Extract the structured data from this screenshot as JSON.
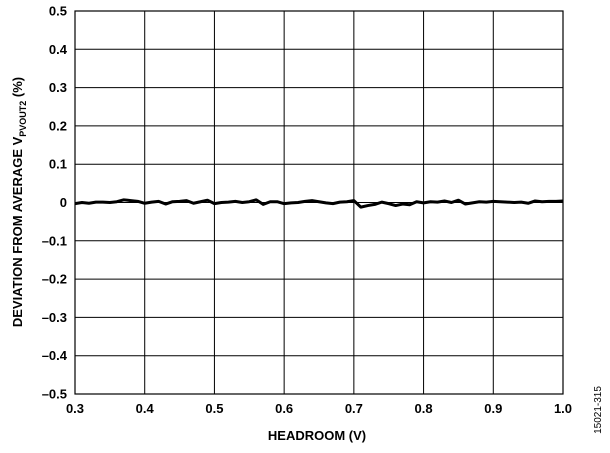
{
  "chart_data": {
    "type": "line",
    "xlabel": "HEADROOM (V)",
    "ylabel_main": "DEVIATION FROM AVERAGE V",
    "ylabel_sub": "PVOUT2",
    "ylabel_suffix": " (%)",
    "xlim": [
      0.3,
      1.0
    ],
    "ylim": [
      -0.5,
      0.5
    ],
    "x_ticks": [
      "0.3",
      "0.4",
      "0.5",
      "0.6",
      "0.7",
      "0.8",
      "0.9",
      "1.0"
    ],
    "y_ticks": [
      "0.5",
      "0.4",
      "0.3",
      "0.2",
      "0.1",
      "0",
      "–0.1",
      "–0.2",
      "–0.3",
      "–0.4",
      "–0.5"
    ],
    "grid": true,
    "series": [
      {
        "x": [
          0.3,
          0.31,
          0.32,
          0.33,
          0.34,
          0.35,
          0.36,
          0.37,
          0.38,
          0.39,
          0.4,
          0.41,
          0.42,
          0.43,
          0.44,
          0.45,
          0.46,
          0.47,
          0.48,
          0.49,
          0.5,
          0.51,
          0.52,
          0.53,
          0.54,
          0.55,
          0.56,
          0.57,
          0.58,
          0.59,
          0.6,
          0.61,
          0.62,
          0.63,
          0.64,
          0.65,
          0.66,
          0.67,
          0.68,
          0.69,
          0.7,
          0.71,
          0.72,
          0.73,
          0.74,
          0.75,
          0.76,
          0.77,
          0.78,
          0.79,
          0.8,
          0.81,
          0.82,
          0.83,
          0.84,
          0.85,
          0.86,
          0.87,
          0.88,
          0.89,
          0.9,
          0.91,
          0.92,
          0.93,
          0.94,
          0.95,
          0.96,
          0.97,
          0.98,
          0.99,
          1.0
        ],
        "values": [
          -0.003,
          0.0,
          -0.002,
          0.001,
          0.001,
          0.0,
          0.002,
          0.007,
          0.005,
          0.003,
          -0.002,
          0.001,
          0.003,
          -0.004,
          0.002,
          0.003,
          0.005,
          -0.002,
          0.002,
          0.006,
          -0.003,
          0.0,
          0.001,
          0.003,
          0.0,
          0.002,
          0.007,
          -0.005,
          0.002,
          0.002,
          -0.003,
          -0.001,
          0.0,
          0.003,
          0.005,
          0.002,
          -0.001,
          -0.003,
          0.001,
          0.002,
          0.005,
          -0.012,
          -0.008,
          -0.005,
          0.001,
          -0.003,
          -0.008,
          -0.004,
          -0.006,
          0.002,
          -0.001,
          0.002,
          0.001,
          0.004,
          0.0,
          0.006,
          -0.004,
          -0.001,
          0.002,
          0.001,
          0.003,
          0.002,
          0.001,
          0.0,
          0.001,
          -0.002,
          0.004,
          0.002,
          0.003,
          0.003,
          0.004
        ]
      }
    ]
  },
  "figure_id": "15021-315",
  "colors": {
    "line": "#000000",
    "grid": "#000000",
    "background": "#ffffff"
  }
}
